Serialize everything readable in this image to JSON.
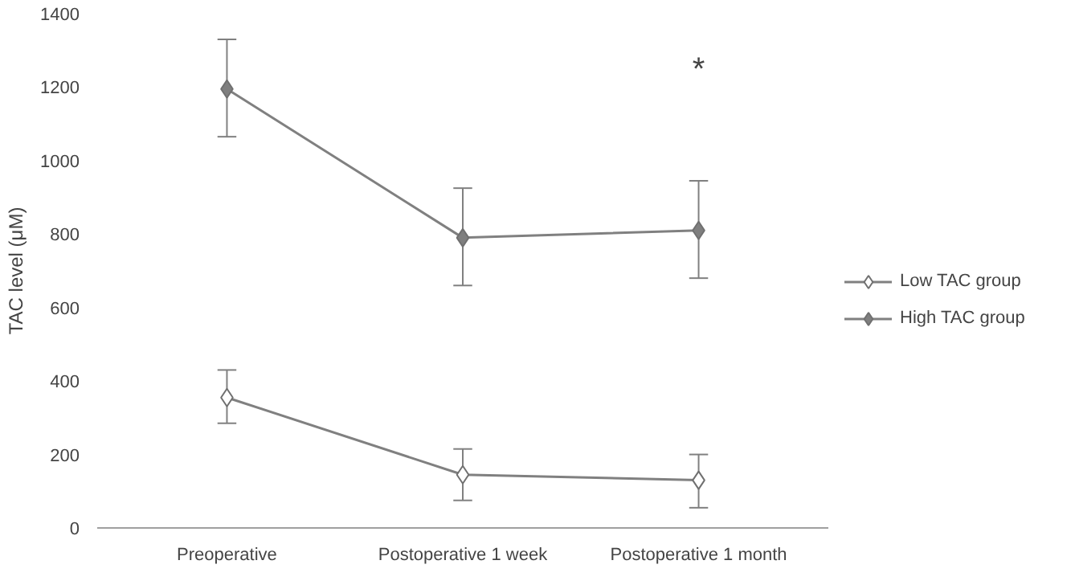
{
  "chart_data": {
    "type": "line",
    "categories": [
      "Preoperative",
      "Postoperative 1 week",
      "Postoperative 1 month"
    ],
    "ylabel": "TAC level (μM)",
    "ylim": [
      0,
      1400
    ],
    "yticks": [
      0,
      200,
      400,
      600,
      800,
      1000,
      1200,
      1400
    ],
    "series": [
      {
        "name": "Low TAC group",
        "color": "#ffffff",
        "values": [
          355,
          145,
          130
        ],
        "errors": [
          [
            285,
            430
          ],
          [
            75,
            215
          ],
          [
            55,
            200
          ]
        ]
      },
      {
        "name": "High TAC group",
        "color": "#7f7f7f",
        "values": [
          1195,
          790,
          810
        ],
        "errors": [
          [
            1065,
            1330
          ],
          [
            660,
            925
          ],
          [
            680,
            945
          ]
        ]
      }
    ],
    "annotations": [
      "*"
    ],
    "marker": "diamond",
    "grid": false,
    "legend": "right"
  }
}
